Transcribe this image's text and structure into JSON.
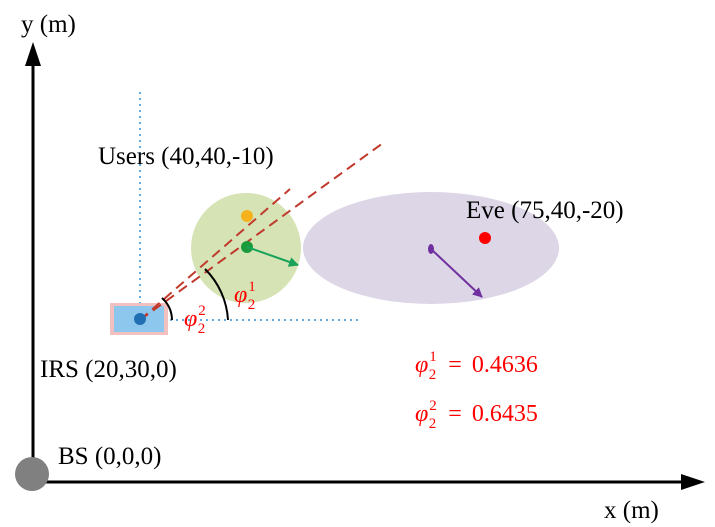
{
  "axes": {
    "x_label": "x (m)",
    "y_label": "y (m)"
  },
  "nodes": {
    "bs": {
      "label": "BS (0,0,0)"
    },
    "irs": {
      "label": "IRS (20,30,0)"
    },
    "users": {
      "label": "Users (40,40,-10)"
    },
    "eve": {
      "label": "Eve (75,40,-20)"
    }
  },
  "angles": {
    "phi1": {
      "symbol": "φ",
      "sub": "2",
      "sup": "1"
    },
    "phi2": {
      "symbol": "φ",
      "sub": "2",
      "sup": "2"
    }
  },
  "equations": [
    {
      "symbol": "φ",
      "sub": "2",
      "sup": "1",
      "eq": "=",
      "value": "0.4636"
    },
    {
      "symbol": "φ",
      "sub": "2",
      "sup": "2",
      "eq": "=",
      "value": "0.6435"
    }
  ],
  "colors": {
    "axis": "#000000",
    "user_region": "#d5e3b5",
    "eve_region": "#dcd6e7",
    "irs_panel": "#8ec7ee",
    "irs_border": "#f3c0c0",
    "irs_dot": "#1f6fb2",
    "bs_node": "#808080",
    "beam_line": "#c0392b",
    "user1_dot": "#f5b21c",
    "user2_dot": "#1a9a3a",
    "eve_dot": "#ff0000",
    "eve_vector": "#7030a0",
    "user_vector": "#19a35a",
    "guide_line": "#2f8fd8",
    "math_text": "#ff0000"
  }
}
